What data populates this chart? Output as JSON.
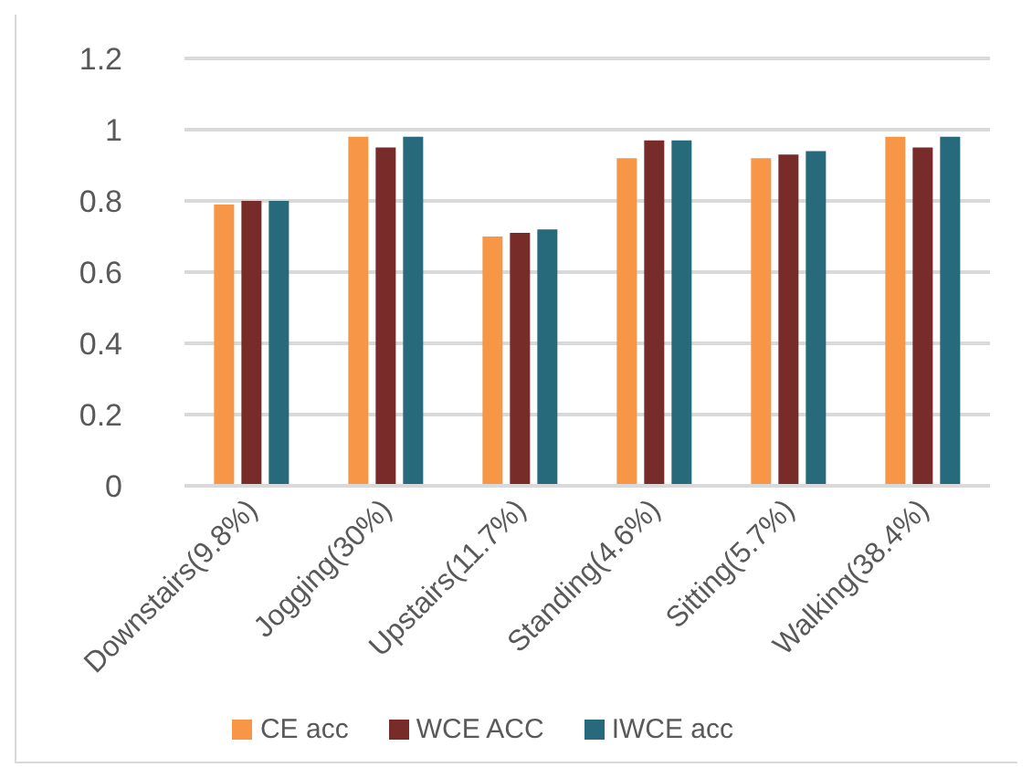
{
  "chart_data": {
    "type": "bar",
    "categories": [
      "Downstairs(9.8%)",
      "Jogging(30%)",
      "Upstairs(11.7%)",
      "Standing(4.6%)",
      "Sitting(5.7%)",
      "Walking(38.4%)"
    ],
    "series": [
      {
        "name": "CE acc",
        "color": "#f79646",
        "values": [
          0.79,
          0.98,
          0.7,
          0.92,
          0.92,
          0.98
        ]
      },
      {
        "name": "WCE ACC",
        "color": "#772c2a",
        "values": [
          0.8,
          0.95,
          0.71,
          0.97,
          0.93,
          0.95
        ]
      },
      {
        "name": "IWCE acc",
        "color": "#276a7c",
        "values": [
          0.8,
          0.98,
          0.72,
          0.97,
          0.94,
          0.98
        ]
      }
    ],
    "ylim": [
      0,
      1.2
    ],
    "yticks": [
      0,
      0.2,
      0.4,
      0.6,
      0.8,
      1,
      1.2
    ],
    "grid": "y",
    "legend": "bottom"
  }
}
